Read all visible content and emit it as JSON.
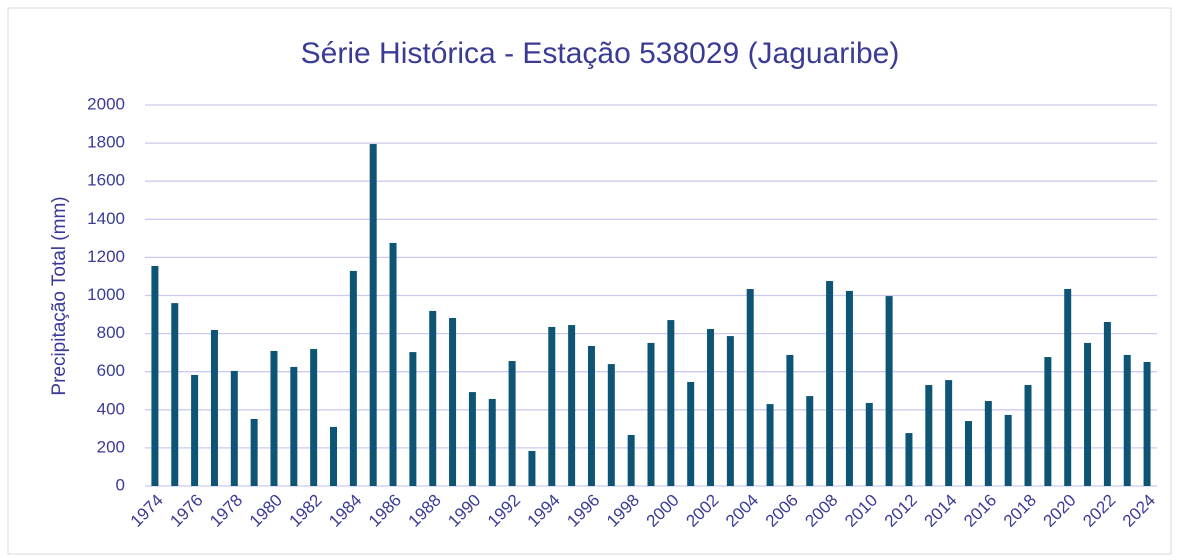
{
  "chart_data": {
    "type": "bar",
    "title": "Série Histórica - Estação 538029 (Jaguaribe)",
    "y_label": "Precipitação Total (mm)",
    "categories": [
      "1974",
      null,
      "1976",
      null,
      "1978",
      null,
      "1980",
      null,
      "1982",
      null,
      "1984",
      null,
      "1986",
      null,
      "1988",
      null,
      "1990",
      null,
      "1992",
      null,
      "1994",
      null,
      "1996",
      null,
      "1998",
      null,
      "2000",
      null,
      "2002",
      null,
      "2004",
      null,
      "2006",
      null,
      "2008",
      null,
      "2010",
      null,
      "2012",
      null,
      "2014",
      null,
      "2016",
      null,
      "2018",
      null,
      "2020",
      null,
      "2022",
      null,
      "2024"
    ],
    "values": [
      1155,
      960,
      583,
      819,
      604,
      352,
      709,
      625,
      719,
      310,
      1129,
      1795,
      1276,
      703,
      919,
      882,
      493,
      457,
      656,
      184,
      835,
      845,
      735,
      640,
      268,
      751,
      871,
      546,
      824,
      787,
      1034,
      430,
      688,
      472,
      1076,
      1024,
      436,
      997,
      278,
      530,
      556,
      341,
      446,
      373,
      530,
      677,
      1034,
      751,
      861,
      688,
      651
    ],
    "color": "#0e5575",
    "ylim": [
      0,
      2000
    ],
    "yticks": [
      0,
      200,
      400,
      600,
      800,
      1000,
      1200,
      1400,
      1600,
      1800,
      2000
    ],
    "grid": true
  }
}
